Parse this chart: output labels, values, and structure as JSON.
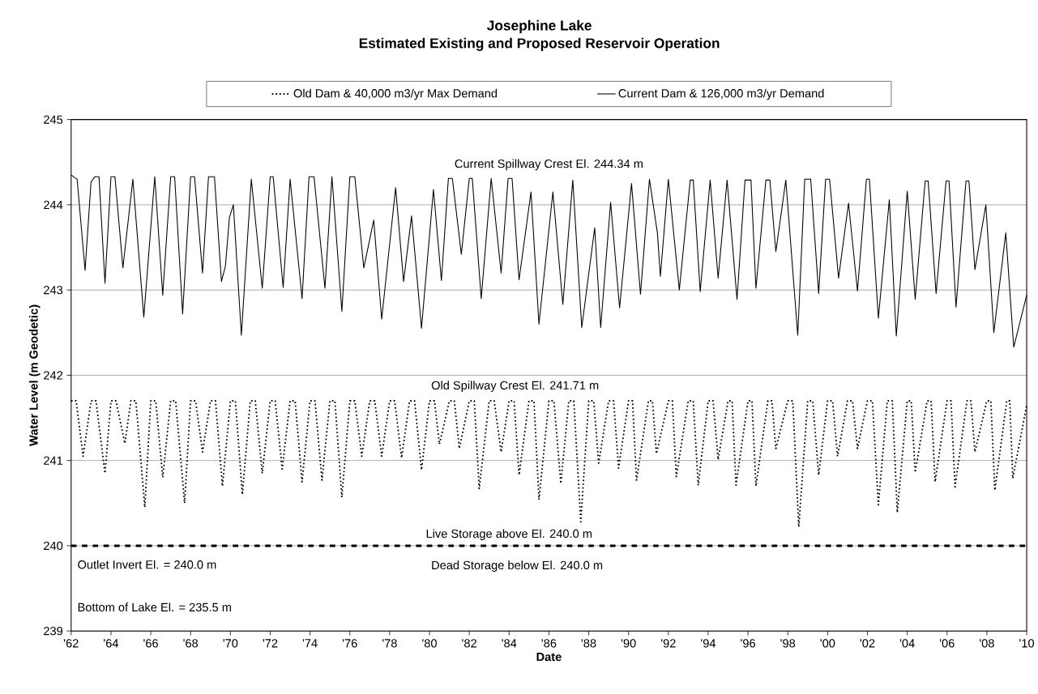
{
  "chart_data": {
    "type": "line",
    "title": "Josephine Lake",
    "subtitle": "Estimated Existing and Proposed Reservoir Operation",
    "xlabel": "Date",
    "ylabel": "Water Level (m Geodetic)",
    "xlim": [
      1962,
      2010
    ],
    "ylim": [
      239,
      245
    ],
    "xticks": [
      {
        "value": 1962,
        "label": "'62"
      },
      {
        "value": 1964,
        "label": "'64"
      },
      {
        "value": 1966,
        "label": "'66"
      },
      {
        "value": 1968,
        "label": "'68"
      },
      {
        "value": 1970,
        "label": "'70"
      },
      {
        "value": 1972,
        "label": "'72"
      },
      {
        "value": 1974,
        "label": "'74"
      },
      {
        "value": 1976,
        "label": "'76"
      },
      {
        "value": 1978,
        "label": "'78"
      },
      {
        "value": 1980,
        "label": "'80"
      },
      {
        "value": 1982,
        "label": "'82"
      },
      {
        "value": 1984,
        "label": "'84"
      },
      {
        "value": 1986,
        "label": "'86"
      },
      {
        "value": 1988,
        "label": "'88"
      },
      {
        "value": 1990,
        "label": "'90"
      },
      {
        "value": 1992,
        "label": "'92"
      },
      {
        "value": 1994,
        "label": "'94"
      },
      {
        "value": 1996,
        "label": "'96"
      },
      {
        "value": 1998,
        "label": "'98"
      },
      {
        "value": 2000,
        "label": "'00"
      },
      {
        "value": 2002,
        "label": "'02"
      },
      {
        "value": 2004,
        "label": "'04"
      },
      {
        "value": 2006,
        "label": "'06"
      },
      {
        "value": 2008,
        "label": "'08"
      },
      {
        "value": 2010,
        "label": "'10"
      }
    ],
    "yticks": [
      239,
      240,
      241,
      242,
      243,
      244,
      245
    ],
    "grid": "y",
    "legend": "top",
    "marker": "none",
    "ref_lines": [
      {
        "axis": "y",
        "value": 240,
        "line_style": "dashed",
        "color": "#000000"
      }
    ],
    "annotations": [
      "Current Spillway Crest El. 244.34 m",
      "Old Spillway Crest El. 241.71 m",
      "Live Storage above El. 240.0 m",
      "Dead Storage below El. 240.0 m",
      "Outlet Invert El. = 240.0 m",
      "Bottom of Lake El. = 235.5 m"
    ],
    "series": [
      {
        "name": "Old Dam & 40,000 m3/yr Max Demand",
        "color": "#000000",
        "line_style": "dotted",
        "x": [
          1962.0,
          1962.25,
          1962.6,
          1963.0,
          1963.25,
          1963.7,
          1964.0,
          1964.25,
          1964.7,
          1965.0,
          1965.25,
          1965.7,
          1966.0,
          1966.25,
          1966.6,
          1967.0,
          1967.25,
          1967.7,
          1968.0,
          1968.25,
          1968.6,
          1969.0,
          1969.25,
          1969.6,
          1970.0,
          1970.25,
          1970.6,
          1971.0,
          1971.25,
          1971.6,
          1972.0,
          1972.25,
          1972.6,
          1973.0,
          1973.25,
          1973.6,
          1974.0,
          1974.25,
          1974.6,
          1975.0,
          1975.25,
          1975.6,
          1976.0,
          1976.25,
          1976.6,
          1977.0,
          1977.25,
          1977.6,
          1978.0,
          1978.25,
          1978.6,
          1979.0,
          1979.25,
          1979.6,
          1980.0,
          1980.25,
          1980.5,
          1981.0,
          1981.25,
          1981.5,
          1982.0,
          1982.25,
          1982.5,
          1983.0,
          1983.25,
          1983.6,
          1984.0,
          1984.25,
          1984.5,
          1985.0,
          1985.25,
          1985.5,
          1986.0,
          1986.25,
          1986.6,
          1987.0,
          1987.25,
          1987.6,
          1988.0,
          1988.25,
          1988.5,
          1989.0,
          1989.25,
          1989.5,
          1990.0,
          1990.2,
          1990.4,
          1991.0,
          1991.2,
          1991.4,
          1992.0,
          1992.2,
          1992.4,
          1993.0,
          1993.25,
          1993.5,
          1994.0,
          1994.25,
          1994.5,
          1995.0,
          1995.2,
          1995.4,
          1996.0,
          1996.2,
          1996.4,
          1997.0,
          1997.2,
          1997.4,
          1998.0,
          1998.25,
          1998.55,
          1999.0,
          1999.25,
          1999.55,
          2000.0,
          2000.25,
          2000.5,
          2001.0,
          2001.25,
          2001.5,
          2002.0,
          2002.25,
          2002.55,
          2003.0,
          2003.25,
          2003.5,
          2004.0,
          2004.2,
          2004.4,
          2005.0,
          2005.2,
          2005.4,
          2006.0,
          2006.2,
          2006.4,
          2007.0,
          2007.2,
          2007.4,
          2008.0,
          2008.2,
          2008.4,
          2009.0,
          2009.15,
          2009.3,
          2010.0
        ],
        "values": [
          241.7,
          241.7,
          241.05,
          241.7,
          241.7,
          240.85,
          241.7,
          241.7,
          241.2,
          241.7,
          241.7,
          240.45,
          241.7,
          241.7,
          240.8,
          241.7,
          241.7,
          240.5,
          241.7,
          241.7,
          241.1,
          241.7,
          241.7,
          240.7,
          241.7,
          241.7,
          240.6,
          241.7,
          241.7,
          240.85,
          241.7,
          241.7,
          240.9,
          241.7,
          241.7,
          240.75,
          241.7,
          241.7,
          240.77,
          241.7,
          241.7,
          240.57,
          241.7,
          241.7,
          241.05,
          241.7,
          241.7,
          241.05,
          241.7,
          241.7,
          241.03,
          241.7,
          241.7,
          240.89,
          241.7,
          241.7,
          241.19,
          241.7,
          241.7,
          241.14,
          241.7,
          241.7,
          240.67,
          241.7,
          241.7,
          241.1,
          241.7,
          241.7,
          240.83,
          241.7,
          241.7,
          240.54,
          241.7,
          241.7,
          240.73,
          241.7,
          241.7,
          240.28,
          241.7,
          241.7,
          240.97,
          241.7,
          241.7,
          240.91,
          241.7,
          241.7,
          240.77,
          241.7,
          241.7,
          241.08,
          241.7,
          241.7,
          240.81,
          241.7,
          241.7,
          240.71,
          241.7,
          241.7,
          241.01,
          241.7,
          241.7,
          240.71,
          241.7,
          241.7,
          240.7,
          241.7,
          241.7,
          241.14,
          241.7,
          241.7,
          240.22,
          241.7,
          241.7,
          240.83,
          241.7,
          241.7,
          241.05,
          241.7,
          241.7,
          241.14,
          241.7,
          241.7,
          240.48,
          241.7,
          241.7,
          240.39,
          241.7,
          241.7,
          240.86,
          241.7,
          241.7,
          240.75,
          241.7,
          241.7,
          240.69,
          241.7,
          241.7,
          241.1,
          241.7,
          241.7,
          240.65,
          241.7,
          241.7,
          240.79,
          241.65
        ]
      },
      {
        "name": "Current Dam & 126,000 m3/yr Demand",
        "color": "#000000",
        "line_style": "solid",
        "x": [
          1962.0,
          1962.3,
          1962.7,
          1963.0,
          1963.2,
          1963.4,
          1963.7,
          1964.0,
          1964.2,
          1964.6,
          1965.1,
          1965.65,
          1966.2,
          1966.6,
          1967.0,
          1967.2,
          1967.6,
          1968.0,
          1968.2,
          1968.6,
          1968.9,
          1969.2,
          1969.55,
          1969.75,
          1969.95,
          1970.15,
          1970.55,
          1971.05,
          1971.6,
          1972.0,
          1972.15,
          1972.65,
          1973.0,
          1973.6,
          1973.95,
          1974.2,
          1974.75,
          1975.1,
          1975.6,
          1976.0,
          1976.25,
          1976.7,
          1977.2,
          1977.6,
          1978.3,
          1978.7,
          1979.1,
          1979.6,
          1980.2,
          1980.6,
          1980.95,
          1981.15,
          1981.6,
          1982.0,
          1982.15,
          1982.6,
          1983.1,
          1983.6,
          1983.95,
          1984.15,
          1984.5,
          1985.1,
          1985.5,
          1986.2,
          1986.7,
          1987.2,
          1987.65,
          1988.3,
          1988.6,
          1989.1,
          1989.55,
          1990.15,
          1990.6,
          1991.05,
          1991.45,
          1991.6,
          1992.0,
          1992.55,
          1993.1,
          1993.25,
          1993.6,
          1994.1,
          1994.5,
          1994.95,
          1995.45,
          1995.85,
          1996.15,
          1996.4,
          1996.9,
          1997.1,
          1997.4,
          1997.9,
          1998.5,
          1998.85,
          1999.15,
          1999.55,
          1999.9,
          2000.1,
          2000.55,
          2001.05,
          2001.5,
          2001.95,
          2002.1,
          2002.55,
          2003.1,
          2003.45,
          2004.0,
          2004.4,
          2004.9,
          2005.05,
          2005.45,
          2005.95,
          2006.1,
          2006.45,
          2006.95,
          2007.1,
          2007.4,
          2007.95,
          2008.35,
          2008.95,
          2009.35,
          2010.0
        ],
        "values": [
          244.35,
          244.3,
          243.23,
          244.27,
          244.33,
          244.33,
          243.08,
          244.33,
          244.33,
          243.26,
          244.3,
          242.68,
          244.33,
          242.94,
          244.33,
          244.33,
          242.72,
          244.33,
          244.33,
          243.2,
          244.33,
          244.33,
          243.1,
          243.28,
          243.85,
          244.0,
          242.47,
          244.3,
          243.02,
          244.33,
          244.33,
          243.03,
          244.3,
          242.9,
          244.33,
          244.33,
          243.02,
          244.33,
          242.75,
          244.33,
          244.33,
          243.26,
          243.82,
          242.66,
          244.2,
          243.1,
          243.87,
          242.55,
          244.18,
          243.11,
          244.31,
          244.31,
          243.42,
          244.31,
          244.31,
          242.9,
          244.31,
          243.2,
          244.31,
          244.31,
          243.12,
          244.15,
          242.6,
          244.15,
          242.83,
          244.29,
          242.56,
          243.73,
          242.56,
          244.03,
          242.79,
          244.25,
          242.95,
          244.3,
          243.67,
          243.16,
          244.3,
          243.0,
          244.29,
          244.29,
          242.98,
          244.29,
          243.14,
          244.29,
          242.89,
          244.29,
          244.29,
          243.02,
          244.29,
          244.29,
          243.45,
          244.29,
          242.47,
          244.3,
          244.3,
          242.96,
          244.3,
          244.3,
          243.14,
          244.02,
          242.99,
          244.3,
          244.3,
          242.67,
          244.06,
          242.46,
          244.16,
          242.89,
          244.28,
          244.28,
          242.96,
          244.28,
          244.28,
          242.8,
          244.28,
          244.28,
          243.24,
          244.0,
          242.5,
          243.67,
          242.33,
          242.94
        ]
      }
    ]
  }
}
